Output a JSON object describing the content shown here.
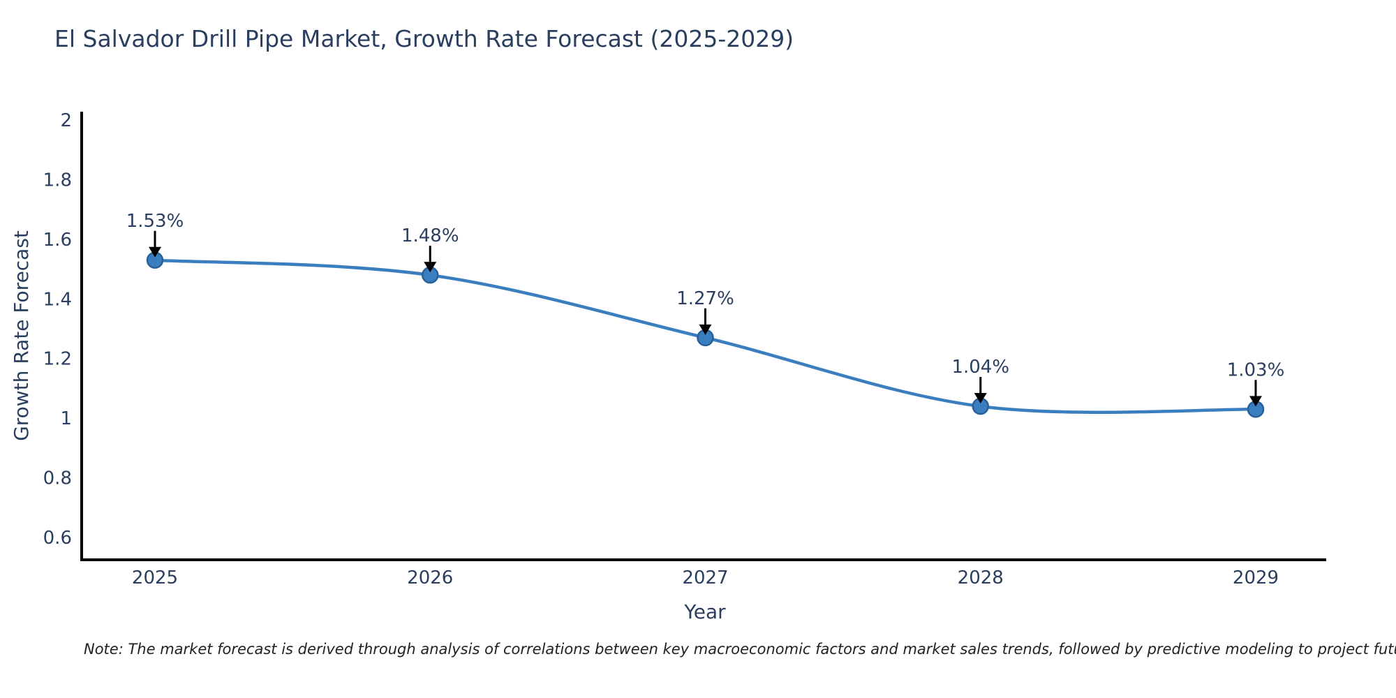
{
  "title": "El Salvador Drill Pipe Market, Growth Rate Forecast (2025-2029)",
  "note": "Note: The market forecast is derived through analysis of correlations between key macroeconomic factors and market sales trends, followed by predictive modeling to project future sales",
  "colors": {
    "line": "#3a7ebf",
    "marker_fill": "#3a7ebf",
    "marker_stroke": "#2a6099",
    "axis": "#000000",
    "text": "#2a3f5f",
    "arrow": "#000000"
  },
  "chart_data": {
    "type": "line",
    "title": "El Salvador Drill Pipe Market, Growth Rate Forecast (2025-2029)",
    "x": [
      2025,
      2026,
      2027,
      2028,
      2029
    ],
    "series": [
      {
        "name": "Growth Rate Forecast",
        "values": [
          1.53,
          1.48,
          1.27,
          1.04,
          1.03
        ]
      }
    ],
    "data_labels": [
      "1.53%",
      "1.48%",
      "1.27%",
      "1.04%",
      "1.03%"
    ],
    "xlabel": "Year",
    "ylabel": "Growth Rate Forecast",
    "yticks": [
      2,
      1.8,
      1.6,
      1.4,
      1.2,
      1,
      0.8,
      0.6
    ],
    "xticks": [
      "2025",
      "2026",
      "2027",
      "2028",
      "2029"
    ],
    "ylim": [
      0.53,
      2.03
    ],
    "grid": false,
    "legend": false,
    "line_shape": "spline",
    "marker": "circle",
    "annotation_arrows": true
  }
}
